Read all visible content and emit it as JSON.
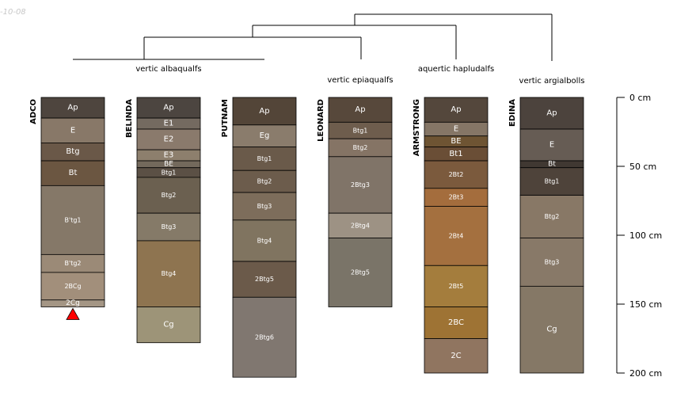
{
  "corner_text": "-10-08",
  "group_labels": [
    "vertic albaqualfs",
    "vertic epiaqualfs",
    "aquertic hapludalfs",
    "vertic argialbolls"
  ],
  "depth_axis": {
    "unit": "cm",
    "ticks": [
      {
        "value": 0,
        "label": "0 cm"
      },
      {
        "value": 50,
        "label": "50 cm"
      },
      {
        "value": 100,
        "label": "100 cm"
      },
      {
        "value": 150,
        "label": "150 cm"
      },
      {
        "value": 200,
        "label": "200 cm"
      }
    ]
  },
  "profiles": [
    {
      "name": "ADCO",
      "flag": "red-triangle-icon",
      "horizons": [
        {
          "name": "Ap",
          "top": 0,
          "bottom": 15,
          "color": "#4e453e"
        },
        {
          "name": "E",
          "top": 15,
          "bottom": 33,
          "color": "#887868"
        },
        {
          "name": "Btg",
          "top": 33,
          "bottom": 46,
          "color": "#6a5848"
        },
        {
          "name": "Bt",
          "top": 46,
          "bottom": 64,
          "color": "#6b5641"
        },
        {
          "name": "B'tg1",
          "top": 64,
          "bottom": 114,
          "color": "#857868"
        },
        {
          "name": "B'tg2",
          "top": 114,
          "bottom": 127,
          "color": "#9b8a77"
        },
        {
          "name": "2BCg",
          "top": 127,
          "bottom": 147,
          "color": "#a28f7b"
        },
        {
          "name": "2Cg",
          "top": 147,
          "bottom": 152,
          "color": "#a49685"
        }
      ]
    },
    {
      "name": "BELINDA",
      "horizons": [
        {
          "name": "Ap",
          "top": 0,
          "bottom": 15,
          "color": "#4c4540"
        },
        {
          "name": "E1",
          "top": 15,
          "bottom": 23,
          "color": "#746a60"
        },
        {
          "name": "E2",
          "top": 23,
          "bottom": 38,
          "color": "#8a7a6c"
        },
        {
          "name": "E3",
          "top": 38,
          "bottom": 46,
          "color": "#8d7f6d"
        },
        {
          "name": "BE",
          "top": 46,
          "bottom": 51,
          "color": "#73695c"
        },
        {
          "name": "Btg1",
          "top": 51,
          "bottom": 58,
          "color": "#5b5045"
        },
        {
          "name": "Btg2",
          "top": 58,
          "bottom": 84,
          "color": "#6b6050"
        },
        {
          "name": "Btg3",
          "top": 84,
          "bottom": 104,
          "color": "#857a68"
        },
        {
          "name": "Btg4",
          "top": 104,
          "bottom": 152,
          "color": "#8e7450"
        },
        {
          "name": "Cg",
          "top": 152,
          "bottom": 178,
          "color": "#9d9478"
        }
      ]
    },
    {
      "name": "PUTNAM",
      "horizons": [
        {
          "name": "Ap",
          "top": 0,
          "bottom": 20,
          "color": "#534538"
        },
        {
          "name": "Eg",
          "top": 20,
          "bottom": 36,
          "color": "#8a7c6c"
        },
        {
          "name": "Btg1",
          "top": 36,
          "bottom": 53,
          "color": "#6a5a4a"
        },
        {
          "name": "Btg2",
          "top": 53,
          "bottom": 69,
          "color": "#6c5c4c"
        },
        {
          "name": "Btg3",
          "top": 69,
          "bottom": 89,
          "color": "#7d6d5b"
        },
        {
          "name": "Btg4",
          "top": 89,
          "bottom": 119,
          "color": "#807460"
        },
        {
          "name": "2Btg5",
          "top": 119,
          "bottom": 145,
          "color": "#6b5a4a"
        },
        {
          "name": "2Btg6",
          "top": 145,
          "bottom": 203,
          "color": "#807770"
        }
      ]
    },
    {
      "name": "LEONARD",
      "horizons": [
        {
          "name": "Ap",
          "top": 0,
          "bottom": 18,
          "color": "#57483b"
        },
        {
          "name": "Btg1",
          "top": 18,
          "bottom": 30,
          "color": "#6e5d4d"
        },
        {
          "name": "Btg2",
          "top": 30,
          "bottom": 43,
          "color": "#857465"
        },
        {
          "name": "2Btg3",
          "top": 43,
          "bottom": 84,
          "color": "#807468"
        },
        {
          "name": "2Btg4",
          "top": 84,
          "bottom": 102,
          "color": "#9d9284"
        },
        {
          "name": "2Btg5",
          "top": 102,
          "bottom": 152,
          "color": "#7a7468"
        }
      ]
    },
    {
      "name": "ARMSTRONG",
      "horizons": [
        {
          "name": "Ap",
          "top": 0,
          "bottom": 18,
          "color": "#54473c"
        },
        {
          "name": "E",
          "top": 18,
          "bottom": 28,
          "color": "#857666"
        },
        {
          "name": "BE",
          "top": 28,
          "bottom": 36,
          "color": "#6e5433"
        },
        {
          "name": "Bt1",
          "top": 36,
          "bottom": 46,
          "color": "#6a4e36"
        },
        {
          "name": "2Bt2",
          "top": 46,
          "bottom": 66,
          "color": "#7b5a3d"
        },
        {
          "name": "2Bt3",
          "top": 66,
          "bottom": 79,
          "color": "#a46d3d"
        },
        {
          "name": "2Bt4",
          "top": 79,
          "bottom": 122,
          "color": "#a4703f"
        },
        {
          "name": "2Bt5",
          "top": 122,
          "bottom": 152,
          "color": "#a47d3d"
        },
        {
          "name": "2BC",
          "top": 152,
          "bottom": 175,
          "color": "#9e7334"
        },
        {
          "name": "2C",
          "top": 175,
          "bottom": 200,
          "color": "#907560"
        }
      ]
    },
    {
      "name": "EDINA",
      "horizons": [
        {
          "name": "Ap",
          "top": 0,
          "bottom": 23,
          "color": "#4c433d"
        },
        {
          "name": "E",
          "top": 23,
          "bottom": 46,
          "color": "#665c54"
        },
        {
          "name": "Bt",
          "top": 46,
          "bottom": 51,
          "color": "#403832"
        },
        {
          "name": "Btg1",
          "top": 51,
          "bottom": 71,
          "color": "#4e433a"
        },
        {
          "name": "Btg2",
          "top": 71,
          "bottom": 102,
          "color": "#887866"
        },
        {
          "name": "Btg3",
          "top": 102,
          "bottom": 137,
          "color": "#887968"
        },
        {
          "name": "Cg",
          "top": 137,
          "bottom": 200,
          "color": "#857866"
        }
      ]
    }
  ]
}
